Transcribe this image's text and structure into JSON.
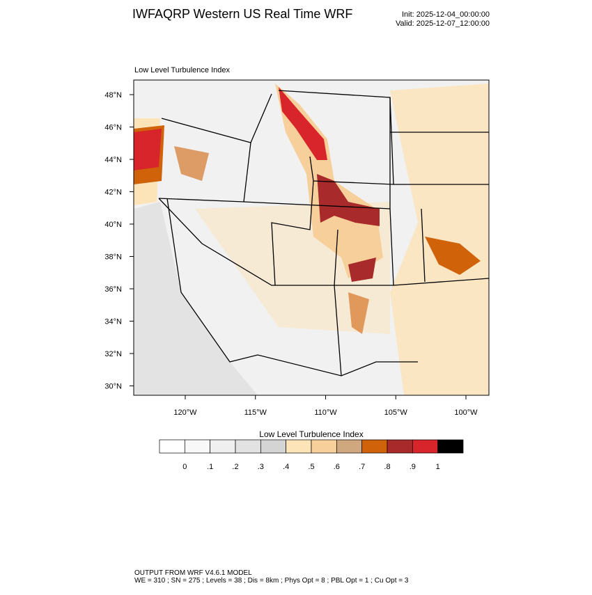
{
  "header": {
    "title": "IWFAQRP Western US Real Time WRF",
    "init": "Init: 2025-12-04_00:00:00",
    "valid": "Valid: 2025-12-07_12:00:00"
  },
  "map": {
    "subtitle": "Low Level Turbulence Index",
    "lat_labels": [
      "48°N",
      "46°N",
      "44°N",
      "42°N",
      "40°N",
      "38°N",
      "36°N",
      "34°N",
      "32°N",
      "30°N"
    ],
    "lon_labels": [
      "120°W",
      "115°W",
      "110°W",
      "105°W",
      "100°W"
    ]
  },
  "colorbar": {
    "title": "Low Level Turbulence Index",
    "labels": [
      "0",
      ".1",
      ".2",
      ".3",
      ".4",
      ".5",
      ".6",
      ".7",
      ".8",
      ".9",
      "1"
    ],
    "colors": [
      "#ffffff",
      "#f8f8f8",
      "#efefef",
      "#e2e2e2",
      "#d4d4d4",
      "#fde3b8",
      "#f7cf9a",
      "#cfa880",
      "#d0620a",
      "#a82a2a",
      "#d8252b",
      "#000000"
    ]
  },
  "footer": {
    "line1": "OUTPUT FROM WRF V4.6.1 MODEL",
    "line2": "WE = 310 ; SN = 275 ; Levels = 38 ; Dis = 8km ; Phys Opt = 8 ; PBL Opt = 1 ; Cu Opt = 3"
  }
}
